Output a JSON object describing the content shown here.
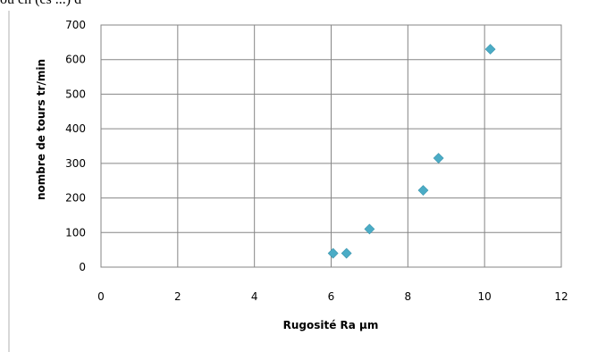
{
  "header_text": "ou ch (cs ...) d",
  "chart_data": {
    "type": "scatter",
    "title": "",
    "xlabel": "Rugosité Ra µm",
    "ylabel": "nombre de tours tr/min",
    "xlim": [
      0,
      12
    ],
    "ylim": [
      0,
      700
    ],
    "xticks": [
      0,
      2,
      4,
      6,
      8,
      10,
      12
    ],
    "yticks": [
      0,
      100,
      200,
      300,
      400,
      500,
      600,
      700
    ],
    "grid": true,
    "legend": "none",
    "marker": "diamond",
    "color": "#4BACC6",
    "x": [
      6.05,
      6.4,
      7.0,
      8.4,
      8.8,
      10.15
    ],
    "y": [
      40,
      40,
      110,
      222,
      315,
      630
    ]
  }
}
